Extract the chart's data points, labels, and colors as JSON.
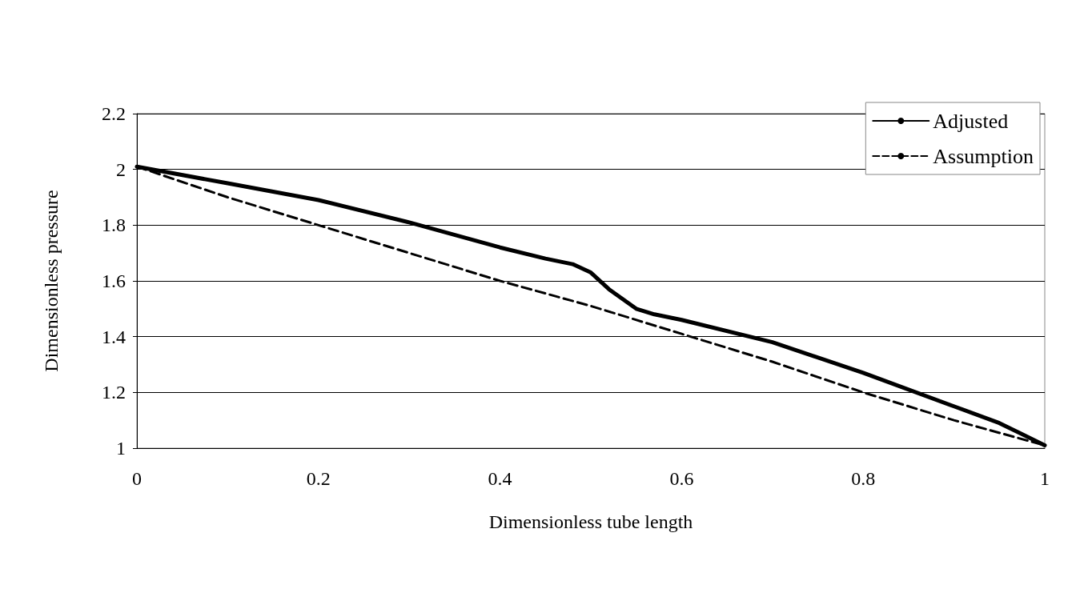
{
  "chart_data": {
    "type": "line",
    "xlabel": "Dimensionless tube length",
    "ylabel": "Dimensionless pressure",
    "xlim": [
      0,
      1
    ],
    "xticks": [
      0,
      0.2,
      0.4,
      0.6,
      0.8,
      1
    ],
    "ylim": [
      1,
      2.2
    ],
    "yticks": [
      1,
      1.2,
      1.4,
      1.6,
      1.8,
      2,
      2.2
    ],
    "grid": "y",
    "legend": "top right",
    "marker": "none",
    "series": [
      {
        "name": "Adjusted",
        "color": "#000000",
        "line_style": "solid",
        "x": [
          0,
          0.1,
          0.2,
          0.3,
          0.4,
          0.45,
          0.48,
          0.5,
          0.52,
          0.55,
          0.57,
          0.6,
          0.7,
          0.8,
          0.9,
          0.95,
          1
        ],
        "values": [
          2.01,
          1.95,
          1.89,
          1.81,
          1.72,
          1.68,
          1.66,
          1.63,
          1.57,
          1.5,
          1.48,
          1.46,
          1.38,
          1.27,
          1.15,
          1.09,
          1.01
        ]
      },
      {
        "name": "Assumption",
        "color": "#000000",
        "line_style": "dashed",
        "x": [
          0,
          0.1,
          0.2,
          0.3,
          0.4,
          0.5,
          0.6,
          0.7,
          0.8,
          0.9,
          1
        ],
        "values": [
          2.01,
          1.9,
          1.8,
          1.7,
          1.6,
          1.51,
          1.41,
          1.31,
          1.2,
          1.1,
          1.01
        ]
      }
    ]
  }
}
